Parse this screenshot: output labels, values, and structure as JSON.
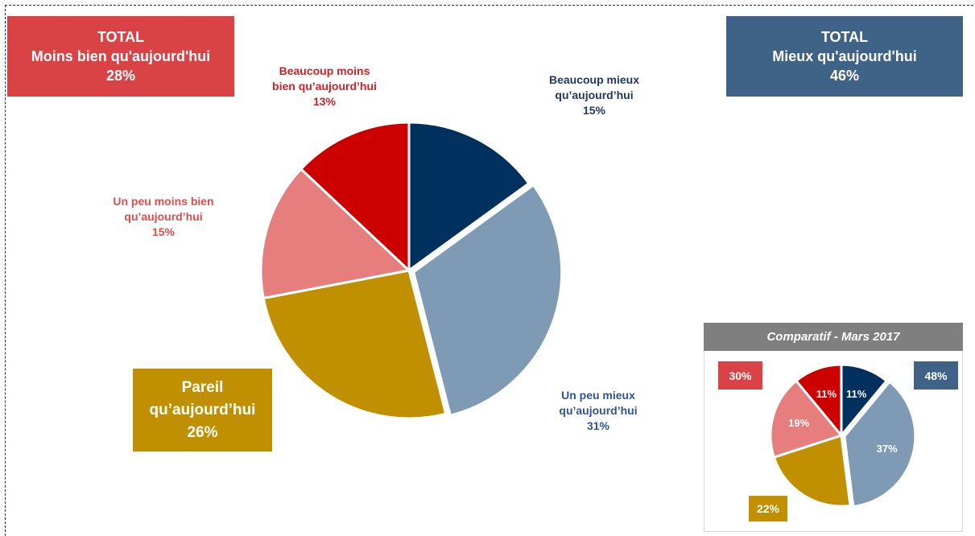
{
  "totals": {
    "minus": {
      "title": "TOTAL",
      "label": "Moins bien qu'aujourd'hui",
      "value": "28%"
    },
    "plus": {
      "title": "TOTAL",
      "label": "Mieux qu'aujourd'hui",
      "value": "46%"
    }
  },
  "slice_labels": {
    "beaucoup_moins": {
      "line1": "Beaucoup moins",
      "line2": "bien qu’aujourd’hui",
      "value": "13%"
    },
    "un_peu_moins": {
      "line1": "Un peu moins bien",
      "line2": "qu’aujourd’hui",
      "value": "15%"
    },
    "pareil": {
      "line1": "Pareil",
      "line2": "qu’aujourd’hui",
      "value": "26%"
    },
    "un_peu_mieux": {
      "line1": "Un peu mieux",
      "line2": "qu’aujourd’hui",
      "value": "31%"
    },
    "beaucoup_mieux": {
      "line1": "Beaucoup mieux",
      "line2": "qu’aujourd’hui",
      "value": "15%"
    }
  },
  "comparison": {
    "title": "Comparatif - Mars 2017",
    "total_minus": "30%",
    "total_plus": "48%",
    "pareil": "22%"
  },
  "chart_data": [
    {
      "type": "pie",
      "categories": [
        "Beaucoup mieux qu’aujourd’hui",
        "Un peu mieux qu’aujourd’hui",
        "Pareil qu’aujourd’hui",
        "Un peu moins bien qu’aujourd’hui",
        "Beaucoup moins bien qu’aujourd’hui"
      ],
      "values": [
        15,
        31,
        26,
        15,
        13
      ],
      "colors": [
        "#00305e",
        "#7f9ab5",
        "#c09000",
        "#e57e7d",
        "#cc0000"
      ]
    },
    {
      "type": "pie",
      "title": "Comparatif - Mars 2017",
      "categories": [
        "Beaucoup mieux qu’aujourd’hui",
        "Un peu mieux qu’aujourd’hui",
        "Pareil qu’aujourd’hui",
        "Un peu moins bien qu’aujourd’hui",
        "Beaucoup moins bien qu’aujourd’hui"
      ],
      "values": [
        11,
        37,
        22,
        19,
        11
      ],
      "colors": [
        "#00305e",
        "#7f9ab5",
        "#c09000",
        "#e57e7d",
        "#cc0000"
      ],
      "data_labels": [
        "11%",
        "37%",
        "",
        "19%",
        "11%"
      ]
    }
  ]
}
